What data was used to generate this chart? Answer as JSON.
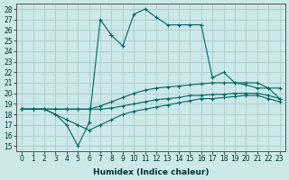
{
  "xlabel": "Humidex (Indice chaleur)",
  "bg_color": "#cce8e8",
  "grid_color": "#aacccc",
  "line_color": "#006666",
  "xlim": [
    -0.5,
    23.5
  ],
  "ylim": [
    14.5,
    28.5
  ],
  "xticks": [
    0,
    1,
    2,
    3,
    4,
    5,
    6,
    7,
    8,
    9,
    10,
    11,
    12,
    13,
    14,
    15,
    16,
    17,
    18,
    19,
    20,
    21,
    22,
    23
  ],
  "yticks": [
    15,
    16,
    17,
    18,
    19,
    20,
    21,
    22,
    23,
    24,
    25,
    26,
    27,
    28
  ],
  "series_main": [
    18.5,
    18.5,
    18.5,
    18.0,
    17.0,
    15.0,
    17.2,
    27.0,
    25.5,
    24.5,
    27.5,
    28.0,
    27.2,
    26.5,
    26.5,
    26.5,
    26.5,
    21.5,
    22.0,
    21.0,
    20.8,
    20.5,
    20.5,
    19.5
  ],
  "series_upper": [
    18.5,
    18.5,
    18.5,
    18.5,
    18.5,
    18.5,
    18.5,
    18.8,
    19.2,
    19.6,
    20.0,
    20.3,
    20.5,
    20.6,
    20.7,
    20.8,
    20.9,
    21.0,
    21.0,
    21.0,
    21.0,
    21.0,
    20.5,
    20.5
  ],
  "series_mid": [
    18.5,
    18.5,
    18.5,
    18.5,
    18.5,
    18.5,
    18.5,
    18.5,
    18.6,
    18.8,
    19.0,
    19.2,
    19.4,
    19.5,
    19.6,
    19.8,
    19.8,
    19.9,
    19.9,
    20.0,
    20.0,
    20.0,
    19.8,
    19.5
  ],
  "series_lower": [
    18.5,
    18.5,
    18.5,
    18.0,
    17.5,
    17.0,
    16.5,
    17.0,
    17.5,
    18.0,
    18.3,
    18.5,
    18.7,
    18.9,
    19.1,
    19.3,
    19.5,
    19.5,
    19.6,
    19.7,
    19.8,
    19.8,
    19.5,
    19.2
  ],
  "tick_fontsize": 5.5,
  "xlabel_fontsize": 6.5
}
